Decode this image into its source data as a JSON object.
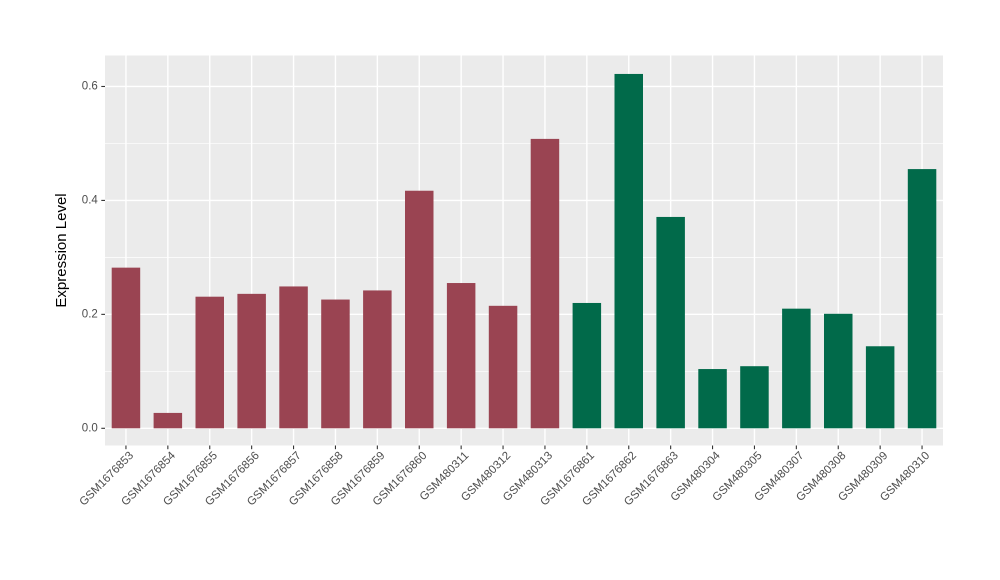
{
  "chart_data": {
    "type": "bar",
    "title": "",
    "xlabel": "",
    "ylabel": "Expression Level",
    "categories": [
      "GSM1676853",
      "GSM1676854",
      "GSM1676855",
      "GSM1676856",
      "GSM1676857",
      "GSM1676858",
      "GSM1676859",
      "GSM1676860",
      "GSM480311",
      "GSM480312",
      "GSM480313",
      "GSM1676861",
      "GSM1676862",
      "GSM1676863",
      "GSM480304",
      "GSM480305",
      "GSM480307",
      "GSM480308",
      "GSM480309",
      "GSM480310"
    ],
    "values": [
      0.282,
      0.027,
      0.231,
      0.236,
      0.249,
      0.226,
      0.242,
      0.417,
      0.255,
      0.215,
      0.508,
      0.22,
      0.622,
      0.371,
      0.104,
      0.109,
      0.21,
      0.201,
      0.144,
      0.455
    ],
    "bar_groups": [
      "A",
      "A",
      "A",
      "A",
      "A",
      "A",
      "A",
      "A",
      "A",
      "A",
      "A",
      "B",
      "B",
      "B",
      "B",
      "B",
      "B",
      "B",
      "B",
      "B"
    ],
    "group_colors": {
      "A": "#9A4452",
      "B": "#016A4A"
    },
    "ylim": [
      -0.0311,
      0.654
    ],
    "yticks": [
      0.0,
      0.2,
      0.4,
      0.6
    ],
    "ytick_labels": [
      "0.0",
      "0.2",
      "0.4",
      "0.6"
    ],
    "yticks_minor": [
      0.1,
      0.3,
      0.5
    ],
    "grid": "on",
    "legend_position": "none",
    "x_label_angle_deg": 45,
    "style": {
      "panel_bg": "#EBEBEB",
      "grid_color": "#FFFFFF",
      "tick_mark_color": "#333333",
      "tick_text_color": "#4D4D4D",
      "axis_title_color": "#000000",
      "page_bg": "#FFFFFF"
    }
  }
}
